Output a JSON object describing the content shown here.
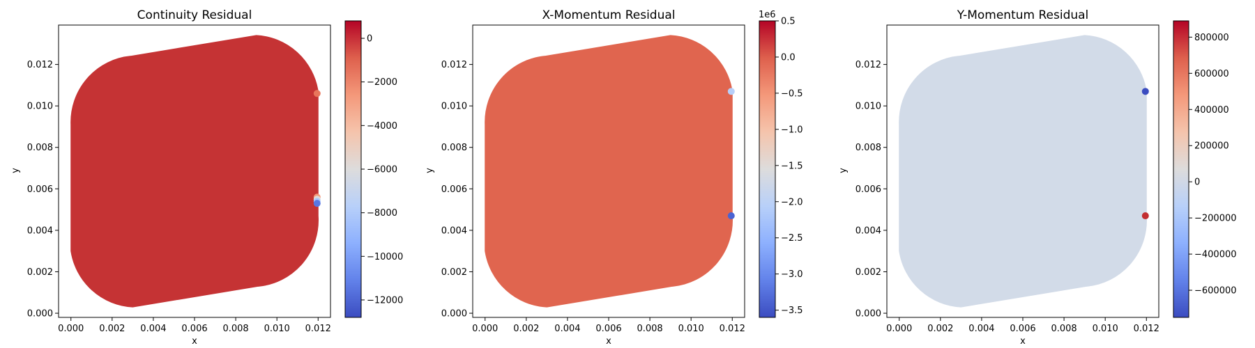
{
  "chart_data": [
    {
      "type": "scatter",
      "title": "Continuity Residual",
      "xlabel": "x",
      "ylabel": "y",
      "xlim": [
        -0.0006,
        0.0126
      ],
      "ylim": [
        -0.0002,
        0.0139
      ],
      "xticks": [
        0.0,
        0.002,
        0.004,
        0.006,
        0.008,
        0.01,
        0.012
      ],
      "xtick_labels": [
        "0.000",
        "0.002",
        "0.004",
        "0.006",
        "0.008",
        "0.010",
        "0.012"
      ],
      "yticks": [
        0.0,
        0.002,
        0.004,
        0.006,
        0.008,
        0.01,
        0.012
      ],
      "ytick_labels": [
        "0.000",
        "0.002",
        "0.004",
        "0.006",
        "0.008",
        "0.010",
        "0.012"
      ],
      "domain_color": "#c53334",
      "domain_value": 0,
      "colormap": "coolwarm",
      "colorbar": {
        "min": -12800,
        "max": 800,
        "offset_label": "",
        "ticks": [
          0,
          -2000,
          -4000,
          -6000,
          -8000,
          -10000,
          -12000
        ],
        "tick_labels": [
          "0",
          "−2000",
          "−4000",
          "−6000",
          "−8000",
          "−10000",
          "−12000"
        ]
      },
      "highlight_points": [
        {
          "x": 0.01195,
          "y": 0.0106,
          "color": "#e8765c"
        },
        {
          "x": 0.01195,
          "y": 0.0056,
          "color": "#f4987a"
        },
        {
          "x": 0.01195,
          "y": 0.0055,
          "color": "#e0dbd8"
        },
        {
          "x": 0.01195,
          "y": 0.0054,
          "color": "#aac7fd"
        },
        {
          "x": 0.01195,
          "y": 0.0053,
          "color": "#5977e3"
        }
      ]
    },
    {
      "type": "scatter",
      "title": "X-Momentum Residual",
      "xlabel": "x",
      "ylabel": "y",
      "xlim": [
        -0.0006,
        0.0126
      ],
      "ylim": [
        -0.0002,
        0.0139
      ],
      "xticks": [
        0.0,
        0.002,
        0.004,
        0.006,
        0.008,
        0.01,
        0.012
      ],
      "xtick_labels": [
        "0.000",
        "0.002",
        "0.004",
        "0.006",
        "0.008",
        "0.010",
        "0.012"
      ],
      "yticks": [
        0.0,
        0.002,
        0.004,
        0.006,
        0.008,
        0.01,
        0.012
      ],
      "ytick_labels": [
        "0.000",
        "0.002",
        "0.004",
        "0.006",
        "0.008",
        "0.010",
        "0.012"
      ],
      "domain_color": "#e0654f",
      "domain_value": 0,
      "colormap": "coolwarm",
      "colorbar": {
        "min": -3.6,
        "max": 0.5,
        "offset_label": "1e6",
        "ticks": [
          0.5,
          0.0,
          -0.5,
          -1.0,
          -1.5,
          -2.0,
          -2.5,
          -3.0,
          -3.5
        ],
        "tick_labels": [
          "0.5",
          "0.0",
          "−0.5",
          "−1.0",
          "−1.5",
          "−2.0",
          "−2.5",
          "−3.0",
          "−3.5"
        ]
      },
      "highlight_points": [
        {
          "x": 0.01195,
          "y": 0.0107,
          "color": "#b7cff9"
        },
        {
          "x": 0.01195,
          "y": 0.0047,
          "color": "#4a63d3"
        }
      ]
    },
    {
      "type": "scatter",
      "title": "Y-Momentum Residual",
      "xlabel": "x",
      "ylabel": "y",
      "xlim": [
        -0.0006,
        0.0126
      ],
      "ylim": [
        -0.0002,
        0.0139
      ],
      "xticks": [
        0.0,
        0.002,
        0.004,
        0.006,
        0.008,
        0.01,
        0.012
      ],
      "xtick_labels": [
        "0.000",
        "0.002",
        "0.004",
        "0.006",
        "0.008",
        "0.010",
        "0.012"
      ],
      "yticks": [
        0.0,
        0.002,
        0.004,
        0.006,
        0.008,
        0.01,
        0.012
      ],
      "ytick_labels": [
        "0.000",
        "0.002",
        "0.004",
        "0.006",
        "0.008",
        "0.010",
        "0.012"
      ],
      "domain_color": "#d2dbe8",
      "domain_value": 0,
      "colormap": "coolwarm",
      "colorbar": {
        "min": -750000,
        "max": 890000,
        "offset_label": "",
        "ticks": [
          800000,
          600000,
          400000,
          200000,
          0,
          -200000,
          -400000,
          -600000
        ],
        "tick_labels": [
          "800000",
          "600000",
          "400000",
          "200000",
          "0",
          "−200000",
          "−400000",
          "−600000"
        ]
      },
      "highlight_points": [
        {
          "x": 0.01195,
          "y": 0.0107,
          "color": "#3b4cc0"
        },
        {
          "x": 0.01195,
          "y": 0.0047,
          "color": "#c32e31"
        }
      ]
    }
  ]
}
